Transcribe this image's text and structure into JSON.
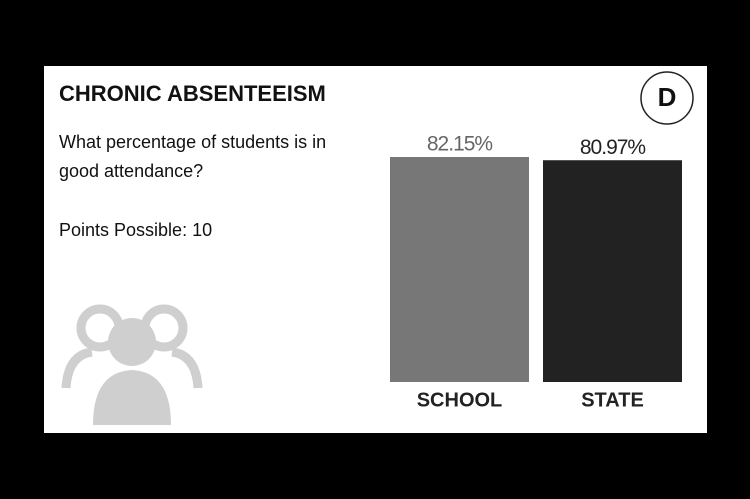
{
  "header": {
    "title": "CHRONIC ABSENTEEISM",
    "grade": "D"
  },
  "question": "What percentage of students is in good attendance?",
  "points": "Points Possible: 10",
  "chart_data": {
    "type": "bar",
    "categories": [
      "SCHOOL",
      "STATE"
    ],
    "values": [
      82.15,
      80.97
    ],
    "value_labels": [
      "82.15%",
      "80.97%"
    ],
    "colors": [
      "#777777",
      "#222222"
    ]
  }
}
